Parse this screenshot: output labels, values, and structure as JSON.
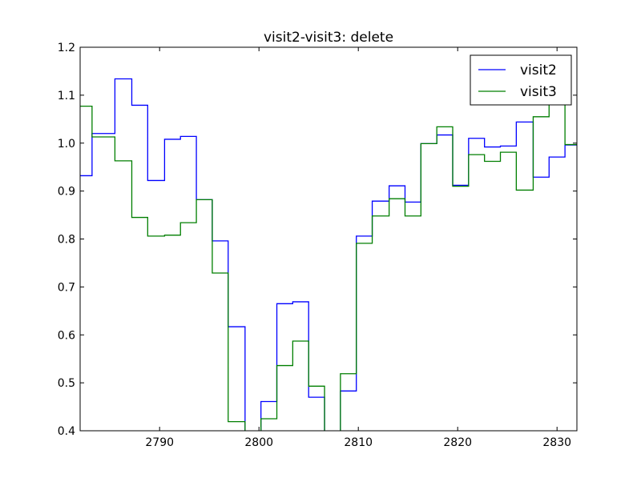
{
  "chart_data": {
    "type": "line",
    "title": "visit2-visit3: delete",
    "xlabel": "",
    "ylabel": "",
    "xlim": [
      2782,
      2832
    ],
    "ylim": [
      0.4,
      1.2
    ],
    "x_ticks": [
      2790,
      2800,
      2810,
      2820,
      2830
    ],
    "y_ticks": [
      0.4,
      0.5,
      0.6,
      0.7,
      0.8,
      0.9,
      1.0,
      1.1,
      1.2
    ],
    "x_tick_labels": [
      "2790",
      "2800",
      "2810",
      "2820",
      "2830"
    ],
    "y_tick_labels": [
      "0.4",
      "0.5",
      "0.6",
      "0.7",
      "0.8",
      "0.9",
      "1.0",
      "1.1",
      "1.2"
    ],
    "grid": false,
    "legend_position": "top-right",
    "step": "post",
    "x": [
      2782,
      2783.2,
      2785.5,
      2787.2,
      2788.8,
      2790.5,
      2792.1,
      2793.7,
      2795.3,
      2796.9,
      2798.6,
      2800.2,
      2801.8,
      2803.4,
      2805.0,
      2806.6,
      2808.2,
      2809.8,
      2811.4,
      2813.1,
      2814.7,
      2816.3,
      2817.9,
      2819.5,
      2821.1,
      2822.7,
      2824.3,
      2825.9,
      2827.6,
      2829.2,
      2830.8
    ],
    "series": [
      {
        "name": "visit2",
        "color": "#0000ff",
        "values": [
          0.932,
          1.02,
          1.134,
          1.079,
          0.922,
          1.008,
          1.014,
          0.882,
          0.796,
          0.617,
          0.375,
          0.461,
          0.665,
          0.669,
          0.47,
          0.38,
          0.483,
          0.806,
          0.879,
          0.911,
          0.877,
          0.999,
          1.017,
          0.912,
          1.01,
          0.992,
          0.994,
          1.044,
          0.929,
          0.971,
          0.996
        ]
      },
      {
        "name": "visit3",
        "color": "#007f00",
        "values": [
          1.077,
          1.013,
          0.963,
          0.845,
          0.806,
          0.808,
          0.834,
          0.882,
          0.729,
          0.419,
          0.35,
          0.425,
          0.536,
          0.587,
          0.493,
          0.37,
          0.519,
          0.791,
          0.848,
          0.884,
          0.848,
          0.999,
          1.034,
          0.91,
          0.976,
          0.962,
          0.981,
          0.902,
          1.055,
          1.085,
          0.997
        ]
      }
    ]
  }
}
